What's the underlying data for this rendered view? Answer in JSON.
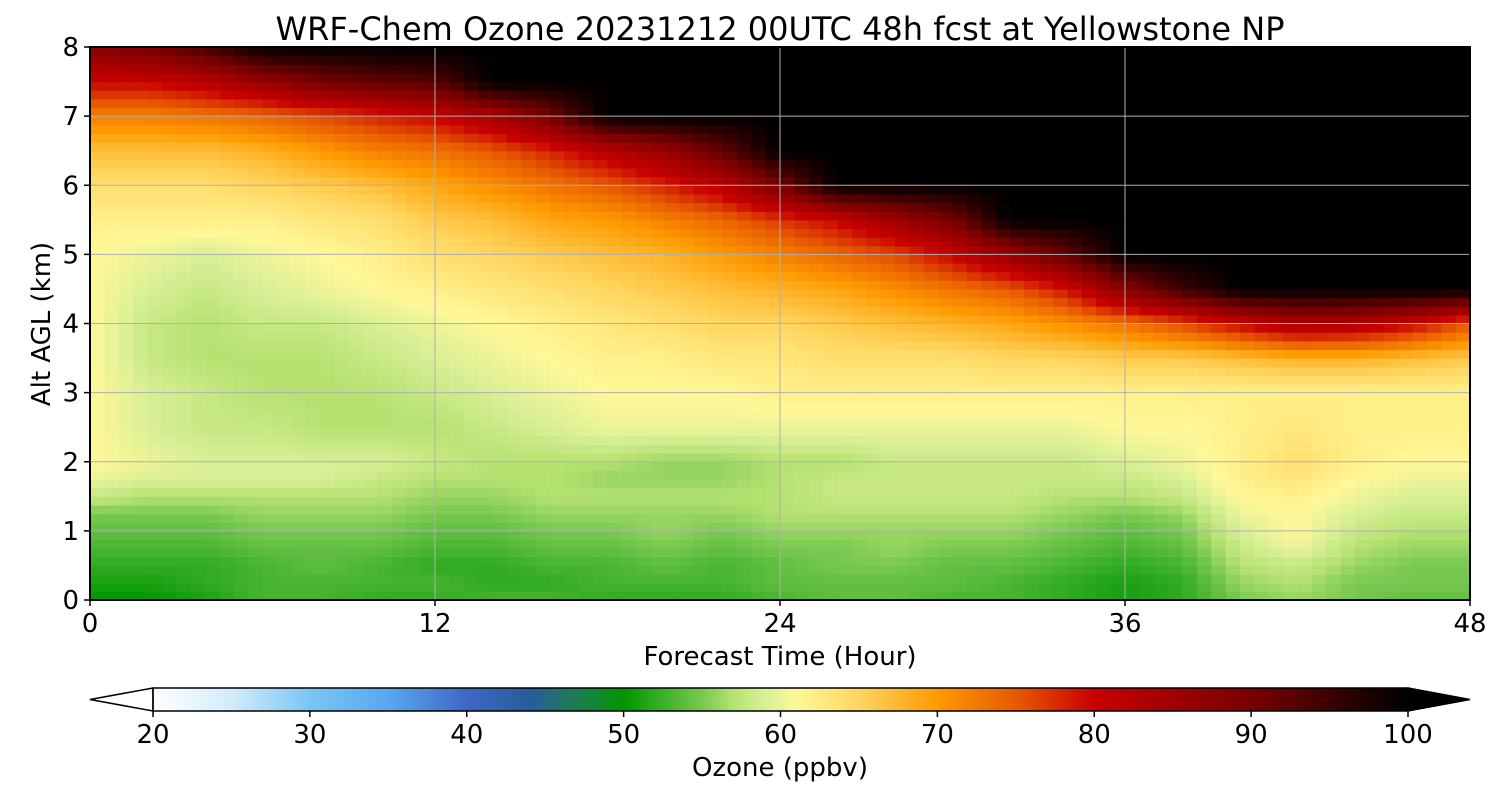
{
  "chart_data": {
    "type": "heatmap",
    "title": "WRF-Chem Ozone  20231212 00UTC 48h fcst at Yellowstone NP",
    "xlabel": "Forecast Time (Hour)",
    "ylabel": "Alt AGL (km)",
    "xlim": [
      0,
      48
    ],
    "ylim": [
      0,
      8
    ],
    "x_ticks": [
      0,
      12,
      24,
      36,
      48
    ],
    "y_ticks": [
      0,
      1,
      2,
      3,
      4,
      5,
      6,
      7,
      8
    ],
    "grid": true,
    "colorbar": {
      "label": "Ozone  (ppbv)",
      "min": 20,
      "max": 100,
      "ticks": [
        20,
        30,
        40,
        50,
        60,
        70,
        80,
        90,
        100
      ],
      "extend": "both",
      "stops": [
        {
          "value": 20,
          "color": "#ffffff"
        },
        {
          "value": 25,
          "color": "#d2ecfb"
        },
        {
          "value": 30,
          "color": "#79c6f5"
        },
        {
          "value": 35,
          "color": "#58a8ee"
        },
        {
          "value": 40,
          "color": "#3f67c6"
        },
        {
          "value": 44,
          "color": "#255e9a"
        },
        {
          "value": 47,
          "color": "#1f7c52"
        },
        {
          "value": 50,
          "color": "#009600"
        },
        {
          "value": 53,
          "color": "#48b432"
        },
        {
          "value": 55,
          "color": "#78c850"
        },
        {
          "value": 57,
          "color": "#b6e272"
        },
        {
          "value": 59,
          "color": "#d9ef96"
        },
        {
          "value": 61,
          "color": "#fff898"
        },
        {
          "value": 65,
          "color": "#ffd660"
        },
        {
          "value": 70,
          "color": "#ff9a00"
        },
        {
          "value": 75,
          "color": "#e75a00"
        },
        {
          "value": 80,
          "color": "#c80000"
        },
        {
          "value": 90,
          "color": "#780000"
        },
        {
          "value": 100,
          "color": "#000000"
        }
      ]
    },
    "x": [
      0,
      2,
      4,
      6,
      8,
      10,
      12,
      14,
      16,
      18,
      20,
      22,
      24,
      26,
      28,
      30,
      32,
      34,
      36,
      38,
      40,
      42,
      44,
      46,
      48
    ],
    "y": [
      0,
      0.25,
      0.5,
      0.75,
      1.0,
      1.25,
      1.5,
      1.75,
      2.0,
      2.5,
      3.0,
      3.5,
      4.0,
      4.5,
      5.0,
      5.5,
      6.0,
      6.5,
      7.0,
      7.5,
      8.0
    ],
    "values": [
      [
        50,
        50,
        51,
        53,
        53,
        52,
        52,
        53,
        53,
        52,
        52,
        52,
        53,
        54,
        54,
        53,
        53,
        52,
        51,
        52,
        55,
        56,
        55,
        54,
        54
      ],
      [
        51,
        51,
        52,
        53,
        53,
        53,
        53,
        52,
        52,
        53,
        53,
        53,
        54,
        54,
        54,
        54,
        53,
        52,
        51,
        52,
        56,
        57,
        55,
        55,
        55
      ],
      [
        52,
        52,
        52,
        53,
        54,
        53,
        52,
        52,
        53,
        53,
        54,
        53,
        54,
        55,
        55,
        54,
        54,
        53,
        52,
        53,
        57,
        58,
        56,
        55,
        55
      ],
      [
        53,
        53,
        53,
        54,
        54,
        54,
        53,
        53,
        54,
        54,
        55,
        54,
        55,
        55,
        56,
        55,
        55,
        54,
        53,
        54,
        58,
        60,
        57,
        56,
        56
      ],
      [
        54,
        54,
        54,
        55,
        55,
        55,
        54,
        54,
        55,
        55,
        56,
        55,
        56,
        56,
        56,
        56,
        56,
        55,
        54,
        55,
        59,
        61,
        58,
        57,
        57
      ],
      [
        55,
        55,
        55,
        56,
        56,
        56,
        55,
        55,
        56,
        56,
        56,
        56,
        57,
        57,
        57,
        57,
        57,
        56,
        55,
        56,
        60,
        61,
        59,
        58,
        58
      ],
      [
        58,
        57,
        57,
        57,
        57,
        57,
        56,
        56,
        57,
        57,
        57,
        57,
        57,
        58,
        58,
        58,
        58,
        57,
        57,
        58,
        61,
        62,
        60,
        59,
        59
      ],
      [
        60,
        59,
        59,
        59,
        59,
        58,
        57,
        57,
        57,
        56,
        56,
        56,
        57,
        58,
        58,
        58,
        58,
        58,
        58,
        59,
        62,
        63,
        61,
        60,
        60
      ],
      [
        61,
        60,
        59,
        59,
        59,
        59,
        58,
        57,
        57,
        57,
        56,
        56,
        57,
        57,
        58,
        58,
        58,
        58,
        59,
        60,
        62,
        64,
        62,
        61,
        61
      ],
      [
        61,
        59,
        58,
        58,
        57,
        57,
        57,
        58,
        59,
        60,
        60,
        60,
        60,
        60,
        60,
        60,
        60,
        60,
        61,
        61,
        62,
        63,
        62,
        62,
        62
      ],
      [
        61,
        59,
        58,
        57,
        57,
        57,
        58,
        59,
        60,
        61,
        61,
        61,
        62,
        62,
        62,
        62,
        62,
        62,
        62,
        62,
        62,
        62,
        62,
        62,
        62
      ],
      [
        61,
        58,
        57,
        57,
        57,
        58,
        59,
        60,
        61,
        62,
        62,
        63,
        63,
        64,
        64,
        64,
        65,
        65,
        66,
        66,
        67,
        68,
        68,
        67,
        66
      ],
      [
        61,
        58,
        57,
        58,
        58,
        59,
        60,
        61,
        62,
        63,
        64,
        65,
        65,
        66,
        67,
        68,
        69,
        71,
        73,
        76,
        80,
        84,
        83,
        80,
        75
      ],
      [
        61,
        59,
        58,
        59,
        60,
        61,
        62,
        63,
        64,
        65,
        66,
        67,
        68,
        69,
        71,
        73,
        75,
        79,
        88,
        95,
        100,
        100,
        100,
        100,
        100
      ],
      [
        61,
        60,
        59,
        60,
        61,
        62,
        64,
        65,
        66,
        67,
        68,
        70,
        72,
        74,
        76,
        80,
        86,
        92,
        100,
        100,
        100,
        100,
        100,
        100,
        100
      ],
      [
        62,
        62,
        62,
        62,
        63,
        64,
        66,
        67,
        69,
        70,
        72,
        74,
        77,
        80,
        85,
        90,
        100,
        100,
        100,
        100,
        100,
        100,
        100,
        100,
        100
      ],
      [
        64,
        64,
        64,
        65,
        66,
        67,
        69,
        71,
        73,
        75,
        78,
        82,
        90,
        100,
        100,
        100,
        100,
        100,
        100,
        100,
        100,
        100,
        100,
        100,
        100
      ],
      [
        67,
        67,
        67,
        68,
        70,
        72,
        73,
        75,
        78,
        82,
        86,
        92,
        100,
        100,
        100,
        100,
        100,
        100,
        100,
        100,
        100,
        100,
        100,
        100,
        100
      ],
      [
        72,
        72,
        73,
        74,
        76,
        78,
        80,
        84,
        90,
        100,
        100,
        100,
        100,
        100,
        100,
        100,
        100,
        100,
        100,
        100,
        100,
        100,
        100,
        100,
        100
      ],
      [
        80,
        80,
        82,
        86,
        90,
        92,
        93,
        100,
        100,
        100,
        100,
        100,
        100,
        100,
        100,
        100,
        100,
        100,
        100,
        100,
        100,
        100,
        100,
        100,
        100
      ],
      [
        88,
        90,
        94,
        100,
        100,
        100,
        100,
        100,
        100,
        100,
        100,
        100,
        100,
        100,
        100,
        100,
        100,
        100,
        100,
        100,
        100,
        100,
        100,
        100,
        100
      ]
    ]
  }
}
